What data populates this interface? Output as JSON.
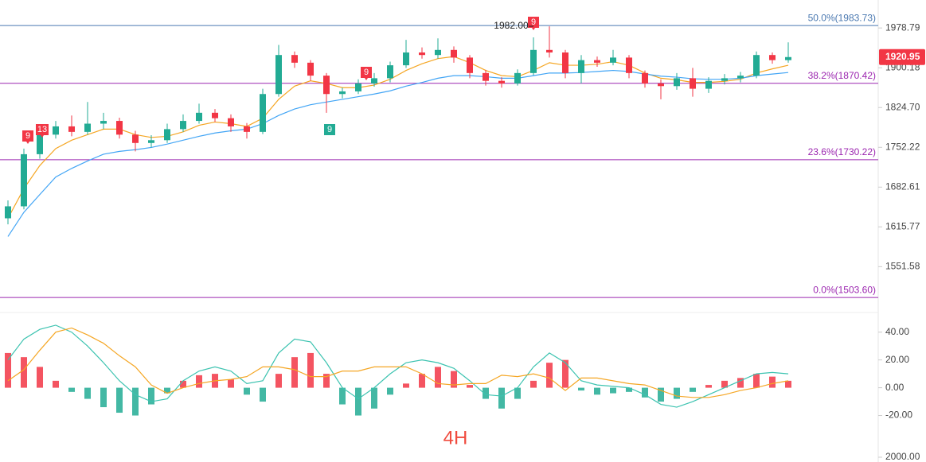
{
  "chart_data": [
    {
      "type": "candlestick",
      "log_scale": true,
      "ylim": [
        1482,
        2036
      ],
      "yticks": [
        1978.79,
        1900.18,
        {
          "value": 1824.7,
          "label": "1824.70"
        },
        1752.22,
        1682.61,
        1615.77,
        1551.58
      ],
      "up_color": "#22ab94",
      "down_color": "#f23645",
      "open": [
        1630,
        1650,
        1740,
        1775,
        1790,
        1780,
        1795,
        1800,
        1775,
        1760,
        1765,
        1785,
        1800,
        1815,
        1805,
        1790,
        1780,
        1850,
        1925,
        1910,
        1885,
        1850,
        1855,
        1870,
        1880,
        1905,
        1930,
        1925,
        1935,
        1920,
        1890,
        1875,
        1870,
        1890,
        1935,
        1930,
        1890,
        1915,
        1910,
        1920,
        1890,
        1870,
        1865,
        1880,
        1860,
        1875,
        1880,
        1885,
        1925,
        1915
      ],
      "high": [
        1660,
        1750,
        1785,
        1800,
        1810,
        1835,
        1815,
        1806,
        1782,
        1774,
        1795,
        1812,
        1832,
        1822,
        1812,
        1796,
        1860,
        1945,
        1932,
        1915,
        1890,
        1862,
        1878,
        1890,
        1912,
        1955,
        1940,
        1958,
        1942,
        1925,
        1896,
        1882,
        1897,
        1960,
        1982,
        1935,
        1925,
        1922,
        1935,
        1925,
        1895,
        1878,
        1890,
        1900,
        1882,
        1888,
        1892,
        1932,
        1930,
        1950
      ],
      "low": [
        1620,
        1645,
        1732,
        1768,
        1772,
        1775,
        1785,
        1768,
        1745,
        1752,
        1760,
        1780,
        1795,
        1798,
        1780,
        1768,
        1776,
        1845,
        1900,
        1875,
        1815,
        1842,
        1850,
        1864,
        1872,
        1900,
        1918,
        1918,
        1910,
        1880,
        1866,
        1862,
        1866,
        1886,
        1920,
        1880,
        1870,
        1902,
        1905,
        1880,
        1862,
        1840,
        1858,
        1845,
        1852,
        1868,
        1872,
        1880,
        1908,
        1910
      ],
      "close": [
        1650,
        1740,
        1775,
        1790,
        1780,
        1795,
        1800,
        1775,
        1760,
        1765,
        1785,
        1800,
        1815,
        1805,
        1790,
        1780,
        1850,
        1925,
        1910,
        1885,
        1850,
        1855,
        1870,
        1880,
        1905,
        1930,
        1925,
        1935,
        1920,
        1890,
        1875,
        1870,
        1890,
        1935,
        1930,
        1890,
        1915,
        1910,
        1920,
        1890,
        1870,
        1865,
        1880,
        1860,
        1875,
        1880,
        1885,
        1925,
        1915,
        1921
      ],
      "series": [
        {
          "color": "#f5a623",
          "values": [
            1630,
            1680,
            1720,
            1750,
            1765,
            1775,
            1785,
            1785,
            1775,
            1770,
            1772,
            1780,
            1792,
            1798,
            1795,
            1790,
            1805,
            1840,
            1865,
            1875,
            1870,
            1862,
            1862,
            1867,
            1878,
            1895,
            1908,
            1918,
            1922,
            1910,
            1895,
            1885,
            1883,
            1895,
            1910,
            1905,
            1905,
            1907,
            1912,
            1905,
            1890,
            1880,
            1877,
            1872,
            1872,
            1874,
            1878,
            1890,
            1898,
            1905
          ]
        },
        {
          "color": "#42a5f5",
          "values": [
            1600,
            1640,
            1670,
            1700,
            1715,
            1728,
            1740,
            1745,
            1748,
            1752,
            1758,
            1765,
            1772,
            1778,
            1782,
            1785,
            1795,
            1810,
            1822,
            1830,
            1835,
            1840,
            1845,
            1850,
            1856,
            1865,
            1872,
            1880,
            1885,
            1885,
            1883,
            1880,
            1880,
            1885,
            1890,
            1890,
            1891,
            1893,
            1895,
            1893,
            1888,
            1884,
            1882,
            1879,
            1878,
            1878,
            1880,
            1885,
            1888,
            1891
          ]
        }
      ],
      "fib_levels": [
        {
          "value": 1983.73,
          "label": "50.0%(1983.73)",
          "color": "#4a78b0"
        },
        {
          "value": 1870.42,
          "label": "38.2%(1870.42)",
          "color": "#9c27b0"
        },
        {
          "value": 1730.22,
          "label": "23.6%(1730.22)",
          "color": "#9c27b0"
        },
        {
          "value": 1503.6,
          "label": "0.0%(1503.60)",
          "color": "#9c27b0"
        }
      ],
      "current_price": {
        "value": 1920.95,
        "label": "1920.95",
        "color": "#f23645"
      },
      "annotation": "1982.00",
      "markers": [
        "9",
        "13",
        "9",
        "9",
        "9"
      ]
    },
    {
      "type": "macd",
      "ylim": [
        -30,
        53
      ],
      "yticks": [
        {
          "value": 40,
          "label": "40.00"
        },
        {
          "value": 20,
          "label": "20.00"
        },
        {
          "value": 0,
          "label": "0.00"
        },
        {
          "value": -20,
          "label": "-20.00"
        }
      ],
      "histogram": [
        25,
        22,
        15,
        5,
        -3,
        -8,
        -14,
        -18,
        -20,
        -12,
        -4,
        5,
        9,
        10,
        6,
        -5,
        -10,
        10,
        22,
        25,
        10,
        -12,
        -20,
        -15,
        -5,
        3,
        10,
        15,
        12,
        2,
        -8,
        -15,
        -8,
        5,
        18,
        20,
        -2,
        -5,
        -4,
        -3,
        -7,
        -10,
        -8,
        -3,
        2,
        5,
        7,
        10,
        8,
        5
      ],
      "series": [
        {
          "color": "#3cc3b0",
          "values": [
            20,
            35,
            42,
            45,
            40,
            30,
            18,
            5,
            -5,
            -10,
            -8,
            5,
            12,
            15,
            12,
            3,
            5,
            25,
            35,
            33,
            18,
            0,
            -8,
            0,
            10,
            18,
            20,
            18,
            14,
            5,
            -5,
            -6,
            0,
            15,
            25,
            18,
            5,
            2,
            1,
            0,
            -5,
            -12,
            -14,
            -10,
            -5,
            0,
            5,
            10,
            11,
            10
          ]
        },
        {
          "color": "#f5a623",
          "values": [
            5,
            13,
            27,
            40,
            43,
            38,
            32,
            23,
            15,
            2,
            -4,
            0,
            3,
            5,
            6,
            8,
            15,
            15,
            13,
            8,
            8,
            12,
            12,
            15,
            15,
            15,
            10,
            3,
            2,
            3,
            3,
            9,
            8,
            10,
            7,
            -2,
            7,
            7,
            5,
            3,
            2,
            -2,
            -6,
            -7,
            -7,
            -5,
            -2,
            0,
            3,
            5
          ]
        }
      ],
      "watermark": "4H"
    },
    {
      "type": "volume",
      "ylim": [
        0,
        2000
      ],
      "yticks": [
        {
          "value": 2000,
          "label": "2000.00"
        }
      ]
    }
  ]
}
